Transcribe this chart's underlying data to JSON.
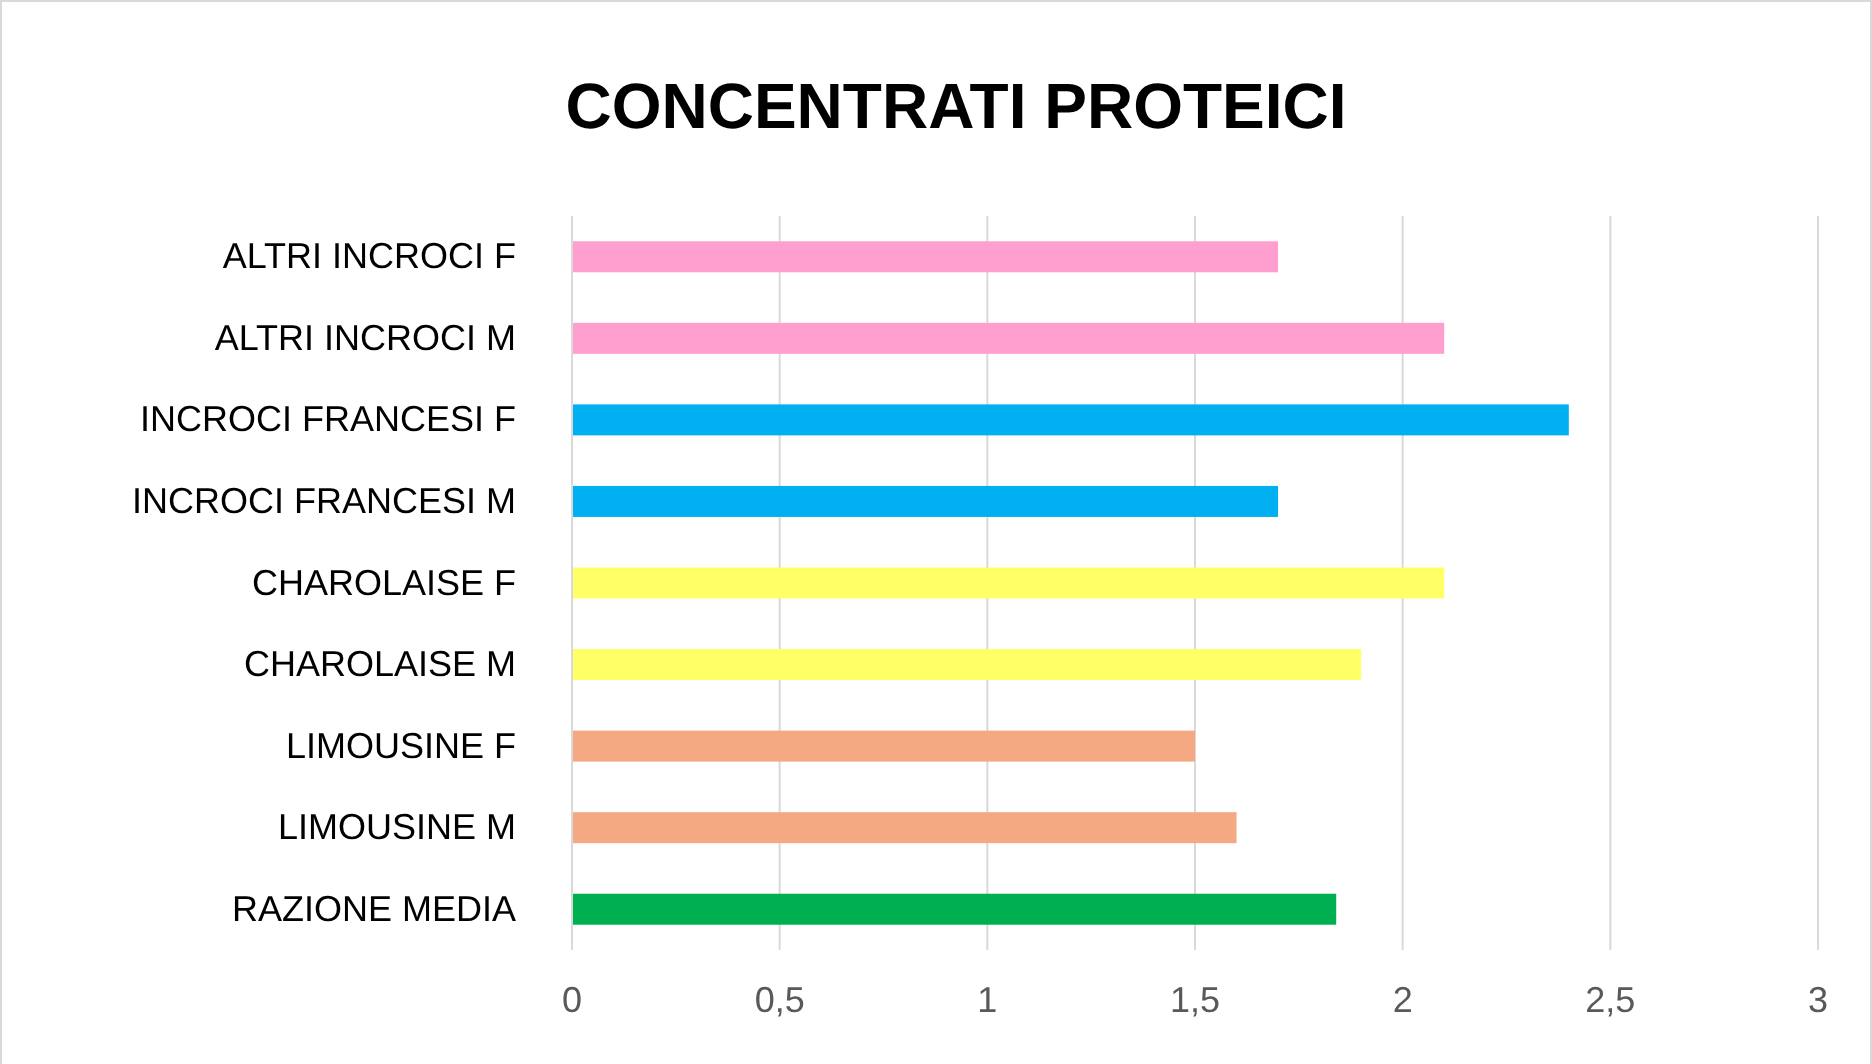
{
  "chart_data": {
    "type": "bar",
    "orientation": "horizontal",
    "title": "CONCENTRATI PROTEICI",
    "categories": [
      "ALTRI INCROCI F",
      "ALTRI INCROCI M",
      "INCROCI FRANCESI F",
      "INCROCI FRANCESI M",
      "CHAROLAISE F",
      "CHAROLAISE M",
      "LIMOUSINE F",
      "LIMOUSINE M",
      "RAZIONE MEDIA"
    ],
    "values": [
      1.7,
      2.1,
      2.4,
      1.7,
      2.1,
      1.9,
      1.5,
      1.6,
      1.84
    ],
    "colors": [
      "#ff9fcf",
      "#ff9fcf",
      "#00b0f0",
      "#00b0f0",
      "#ffff66",
      "#ffff66",
      "#f4a982",
      "#f4a982",
      "#00b050"
    ],
    "xlim": [
      0,
      3
    ],
    "xticks": [
      0,
      {
        "value": 0.5,
        "label": "0,5"
      },
      1,
      {
        "value": 1.5,
        "label": "1,5"
      },
      2,
      {
        "value": 2.5,
        "label": "2,5"
      },
      3
    ],
    "grid": "x"
  }
}
